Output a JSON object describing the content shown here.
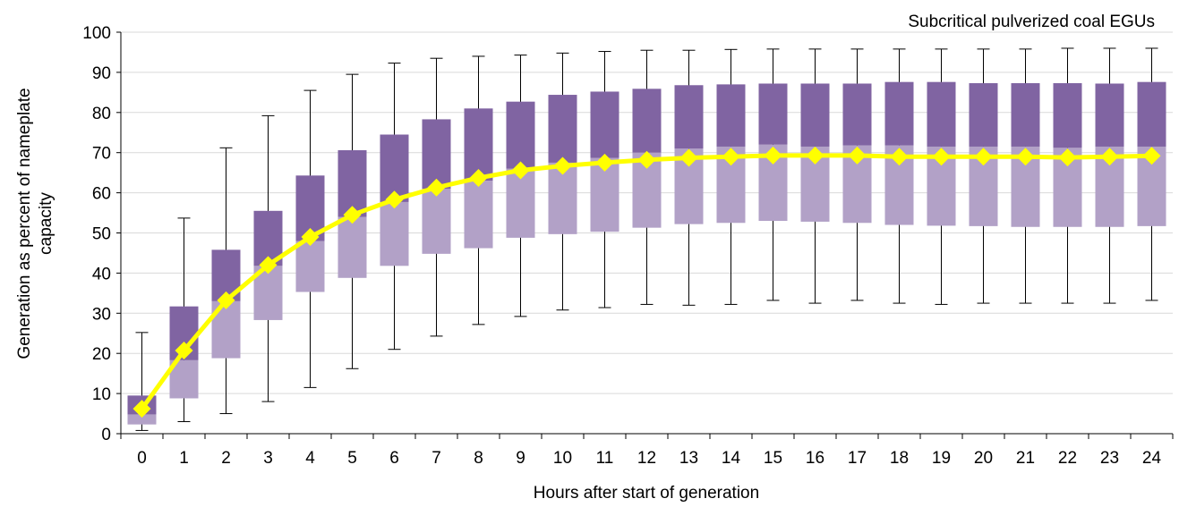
{
  "chart_data": {
    "type": "box",
    "annotation": "Subcritical pulverized coal EGUs",
    "xlabel": "Hours after start of generation",
    "ylabel_lines": [
      "Generation as percent of nameplate",
      "capacity"
    ],
    "ylim": [
      0,
      100
    ],
    "y_ticks": [
      0,
      10,
      20,
      30,
      40,
      50,
      60,
      70,
      80,
      90,
      100
    ],
    "grid": true,
    "categories": [
      "0",
      "1",
      "2",
      "3",
      "4",
      "5",
      "6",
      "7",
      "8",
      "9",
      "10",
      "11",
      "12",
      "13",
      "14",
      "15",
      "16",
      "17",
      "18",
      "19",
      "20",
      "21",
      "22",
      "23",
      "24"
    ],
    "series": [
      {
        "values": [
          0.8,
          3.0,
          5.0,
          8.0,
          11.5,
          16.2,
          21.0,
          24.3,
          27.2,
          29.2,
          30.8,
          31.4,
          32.2,
          32.0,
          32.2,
          33.2,
          32.5,
          33.2,
          32.5,
          32.2,
          32.5,
          32.5,
          32.5,
          32.5,
          33.2
        ]
      },
      {
        "values": [
          2.3,
          8.8,
          18.8,
          28.3,
          35.3,
          38.8,
          41.8,
          44.8,
          46.2,
          48.8,
          49.7,
          50.3,
          51.3,
          52.2,
          52.5,
          53.0,
          52.8,
          52.5,
          52.0,
          51.8,
          51.7,
          51.5,
          51.5,
          51.5,
          51.7
        ]
      },
      {
        "values": [
          4.8,
          18.3,
          33.0,
          41.8,
          48.0,
          54.0,
          57.7,
          61.0,
          63.0,
          66.0,
          67.5,
          68.7,
          70.0,
          71.0,
          71.5,
          72.0,
          71.5,
          71.8,
          71.8,
          71.5,
          71.5,
          71.5,
          71.2,
          71.5,
          71.5
        ]
      },
      {
        "values": [
          9.5,
          31.7,
          45.8,
          55.5,
          64.3,
          70.6,
          74.5,
          78.3,
          81.0,
          82.7,
          84.4,
          85.2,
          85.9,
          86.8,
          87.0,
          87.2,
          87.2,
          87.2,
          87.6,
          87.6,
          87.3,
          87.3,
          87.3,
          87.2,
          87.6
        ]
      },
      {
        "values": [
          25.2,
          53.7,
          71.2,
          79.2,
          85.5,
          89.5,
          92.3,
          93.5,
          94.0,
          94.3,
          94.8,
          95.2,
          95.5,
          95.5,
          95.7,
          95.8,
          95.8,
          95.8,
          95.8,
          95.8,
          95.8,
          95.8,
          96.0,
          96.0,
          96.0
        ]
      },
      {
        "values": [
          6.2,
          20.7,
          33.2,
          42.0,
          49.0,
          54.5,
          58.3,
          61.3,
          63.7,
          65.6,
          66.7,
          67.5,
          68.2,
          68.7,
          69.0,
          69.3,
          69.3,
          69.3,
          69.0,
          69.0,
          69.0,
          69.0,
          68.8,
          69.0,
          69.2
        ]
      }
    ],
    "colors": {
      "upper_box": "#8064a2",
      "lower_box": "#b2a1c7",
      "mean_line": "#ffff00",
      "mean_marker": "#ffff00",
      "whisker": "#000000",
      "grid": "#d9d9d9",
      "axis": "#000000"
    }
  }
}
